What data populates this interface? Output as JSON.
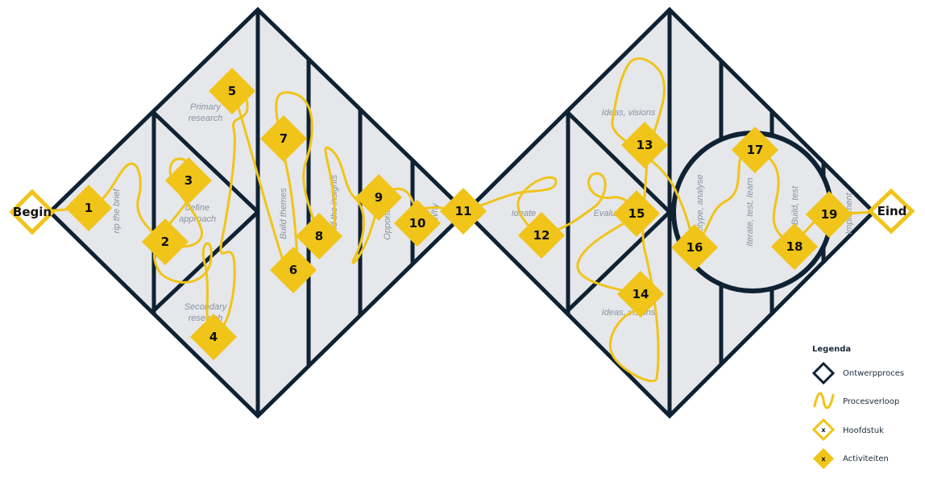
{
  "chapters": {
    "begin": "Begin",
    "end": "Eind"
  },
  "phases": {
    "rip_the_brief": "rip the brief",
    "primary_research": [
      "Primary",
      "research"
    ],
    "define_approach": [
      "define",
      "approach"
    ],
    "secondary_research": [
      "Secondary",
      "research"
    ],
    "build_themes": "Build themes",
    "find_the_insights": "find the insights",
    "opportunities": "Opportunities",
    "why": "Why",
    "ideate": "Ideate",
    "evaluate": "Evaluate",
    "ideas_visions_top": "Ideas, visions",
    "ideas_visions_bottom": "Ideas, visions",
    "prototype_analyse": "Prototype, analyse",
    "iterate": "iterate, test, learn",
    "build_test": "Build, test",
    "implement": "Implement"
  },
  "activities": [
    "1",
    "2",
    "3",
    "4",
    "5",
    "6",
    "7",
    "8",
    "9",
    "10",
    "11",
    "12",
    "13",
    "14",
    "15",
    "16",
    "17",
    "18",
    "19"
  ],
  "legend": {
    "title": "Legenda",
    "items": [
      {
        "label": "Ontwerpproces",
        "icon": "navy-diamond-outline-icon"
      },
      {
        "label": "Procesverloop",
        "icon": "yellow-squiggle-icon"
      },
      {
        "label": "Hoofdstuk",
        "icon": "yellow-outline-diamond-icon",
        "marker": "x"
      },
      {
        "label": "Activiteiten",
        "icon": "yellow-filled-diamond-icon",
        "marker": "x"
      }
    ]
  },
  "colors": {
    "navy": "#0f2233",
    "yellow": "#f0c419",
    "fill": "#e5e7ea"
  }
}
